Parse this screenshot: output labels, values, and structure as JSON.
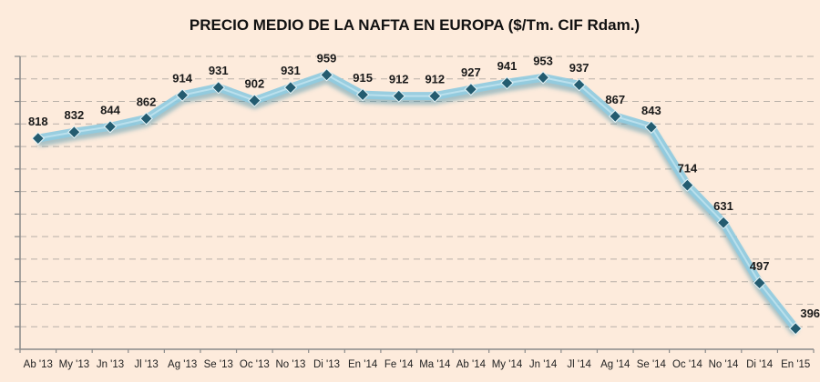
{
  "chart_data": {
    "type": "line",
    "title": "PRECIO MEDIO DE LA NAFTA EN EUROPA ($/Tm. CIF Rdam.)",
    "xlabel": "",
    "ylabel": "",
    "categories": [
      "Ab '13",
      "My '13",
      "Jn '13",
      "Jl '13",
      "Ag '13",
      "Se '13",
      "Oc '13",
      "No '13",
      "Di '13",
      "En '14",
      "Fe '14",
      "Ma '14",
      "Ab '14",
      "My '14",
      "Jn '14",
      "Jl '14",
      "Ag '14",
      "Se '14",
      "Oc '14",
      "No '14",
      "Di '14",
      "En '15"
    ],
    "series": [
      {
        "name": "Precio medio nafta",
        "values": [
          818,
          832,
          844,
          862,
          914,
          931,
          902,
          931,
          959,
          915,
          912,
          912,
          927,
          941,
          953,
          937,
          867,
          843,
          714,
          631,
          497,
          396
        ]
      }
    ],
    "ylim": [
      350,
      1000
    ],
    "ytick_step": 50,
    "ytick_labels_visible": false,
    "grid": true,
    "grid_style": "dashed-horizontal",
    "legend": "none",
    "data_labels": true,
    "colors": {
      "background": "#fdebdc",
      "line_glow": "#8fcbe0",
      "marker": "#245c70",
      "grid": "#b8b0a8",
      "axis": "#8a8a8a"
    }
  }
}
